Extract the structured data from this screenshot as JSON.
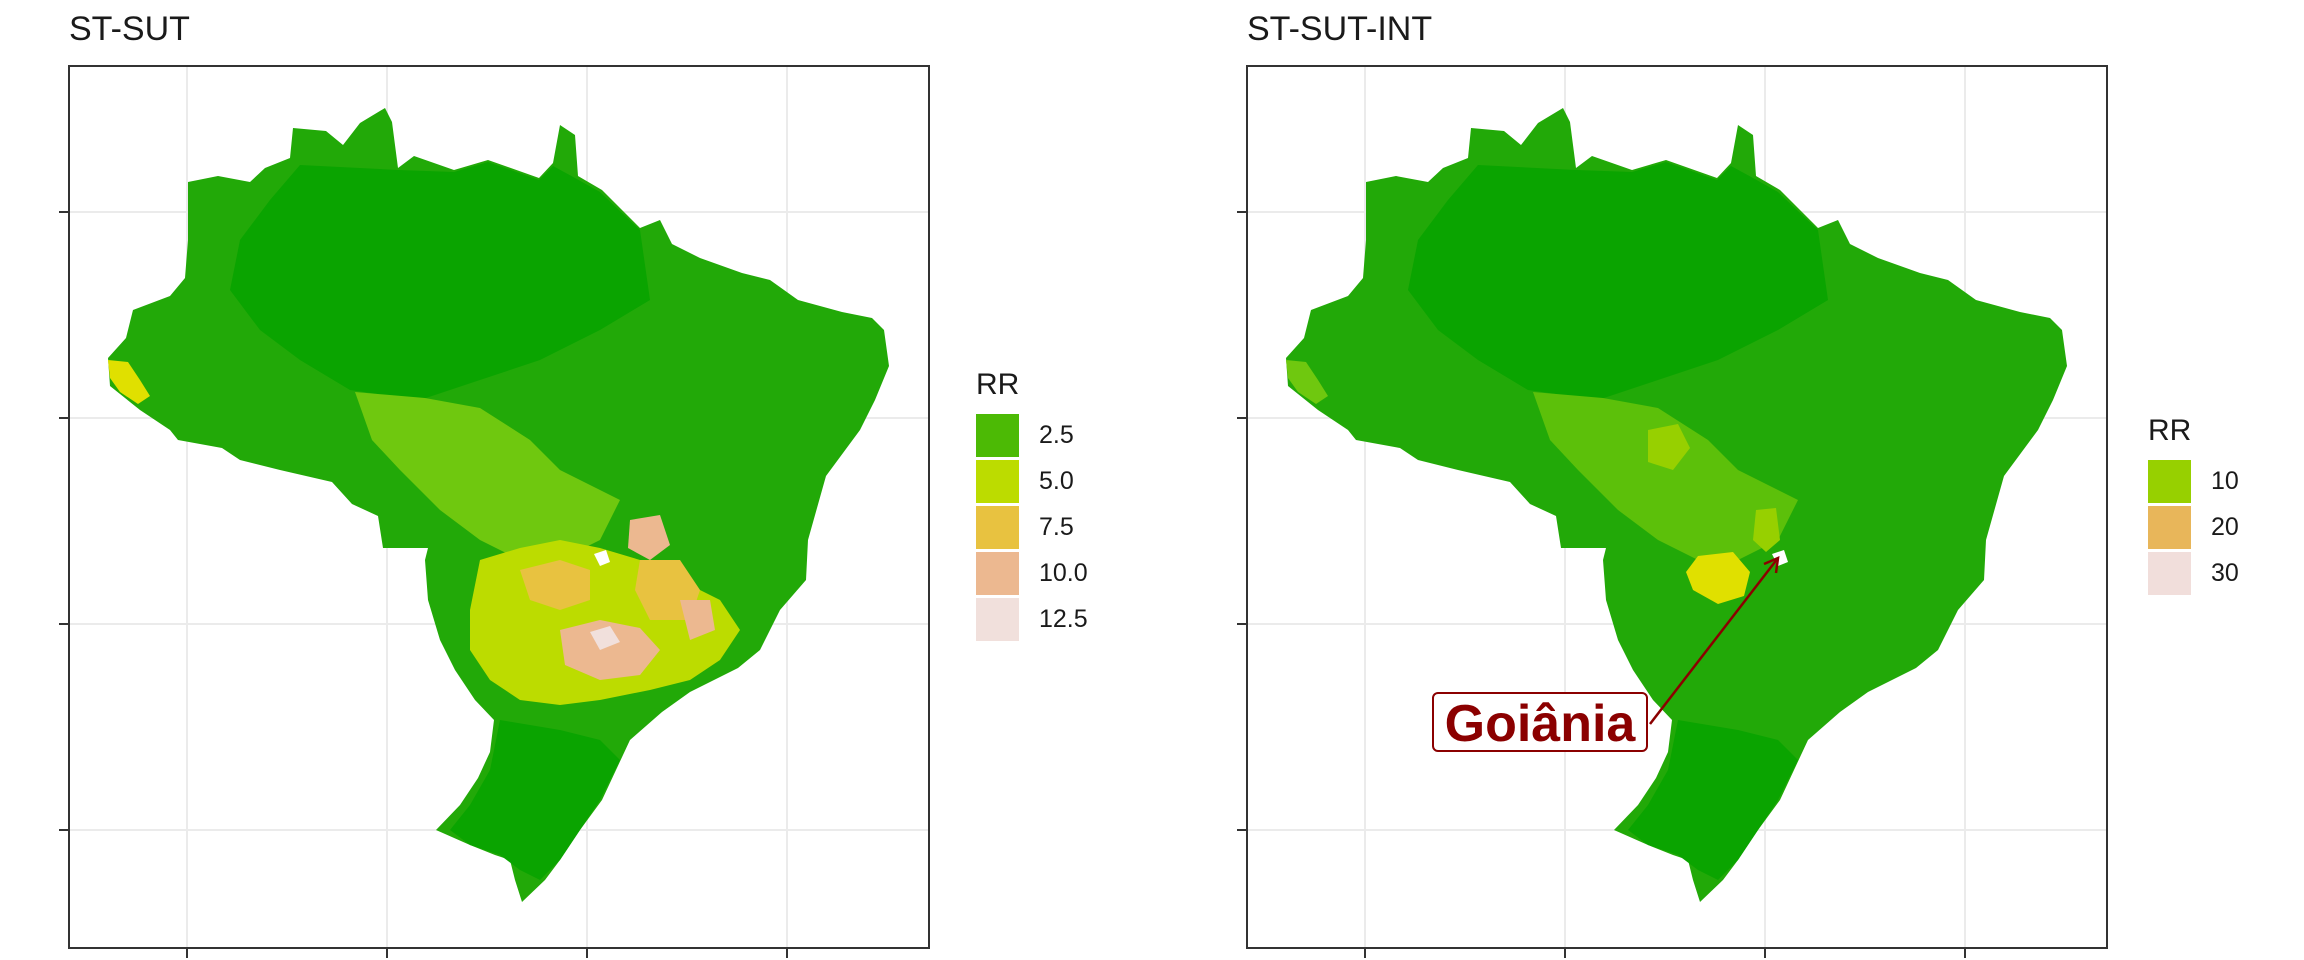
{
  "panels": [
    {
      "title": "ST-SUT",
      "legend": {
        "title": "RR",
        "items": [
          {
            "label": "2.5",
            "color": "#4cba05"
          },
          {
            "label": "5.0",
            "color": "#bcdc00"
          },
          {
            "label": "7.5",
            "color": "#e8c240"
          },
          {
            "label": "10.0",
            "color": "#ecb890"
          },
          {
            "label": "12.5",
            "color": "#f1e0dc"
          }
        ]
      }
    },
    {
      "title": "ST-SUT-INT",
      "legend": {
        "title": "RR",
        "items": [
          {
            "label": "10",
            "color": "#97d000"
          },
          {
            "label": "20",
            "color": "#e8b65a"
          },
          {
            "label": "30",
            "color": "#f1dedb"
          }
        ]
      },
      "annotation": {
        "label": "Goiânia",
        "color": "#8b0000"
      }
    }
  ],
  "colors": {
    "base_green": "#22a908",
    "dark_green": "#0aa400",
    "frame": "#333333",
    "grid": "#ebebeb"
  }
}
